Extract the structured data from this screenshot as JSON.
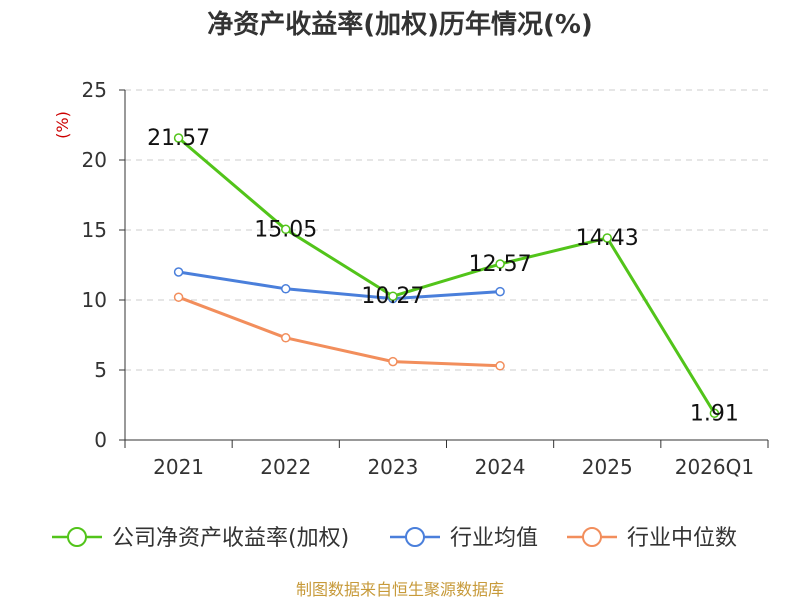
{
  "chart_data": {
    "type": "line",
    "title": "净资产收益率(加权)历年情况(%)",
    "ylabel": "(%)",
    "xlabel": "",
    "categories": [
      "2021",
      "2022",
      "2023",
      "2024",
      "2025",
      "2026Q1"
    ],
    "ylim": [
      0,
      25
    ],
    "yticks": [
      0,
      5,
      10,
      15,
      20,
      25
    ],
    "grid": true,
    "legend_position": "bottom",
    "series": [
      {
        "name": "公司净资产收益率(加权)",
        "color": "#52c41a",
        "values": [
          21.57,
          15.05,
          10.27,
          12.57,
          14.43,
          1.91
        ],
        "labels": [
          "21.57",
          "15.05",
          "10.27",
          "12.57",
          "14.43",
          "1.91"
        ]
      },
      {
        "name": "行业均值",
        "color": "#4a7fdb",
        "values": [
          12.0,
          10.8,
          10.1,
          10.6,
          null,
          null
        ]
      },
      {
        "name": "行业中位数",
        "color": "#f28e5c",
        "values": [
          10.2,
          7.3,
          5.6,
          5.3,
          null,
          null
        ]
      }
    ]
  },
  "footer": {
    "source": "制图数据来自恒生聚源数据库"
  }
}
